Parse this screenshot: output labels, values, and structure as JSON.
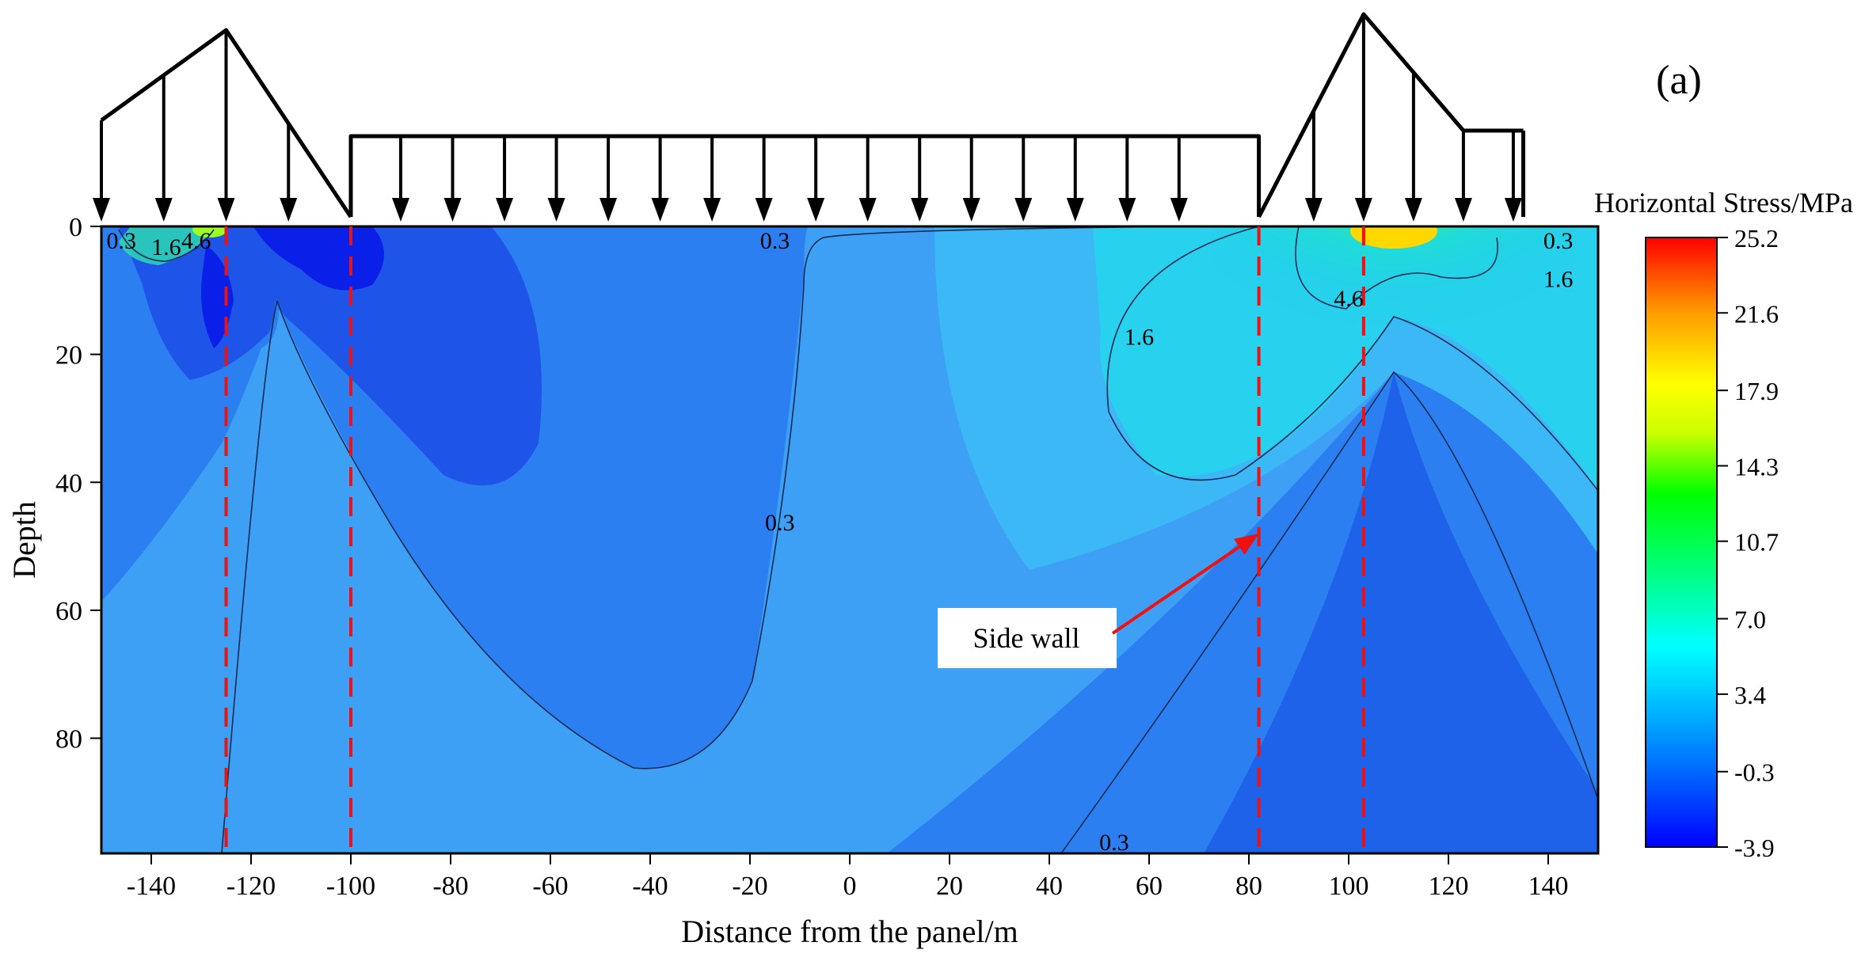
{
  "panel_label": "(a)",
  "chart_data": {
    "type": "heatmap",
    "title": "",
    "xlabel": "Distance from the panel/m",
    "ylabel": "Depth",
    "xlim": [
      -150,
      150
    ],
    "ylim": [
      0,
      98
    ],
    "y_inverted": true,
    "x_ticks": [
      -140,
      -120,
      -100,
      -80,
      -60,
      -40,
      -20,
      0,
      20,
      40,
      60,
      80,
      100,
      120,
      140
    ],
    "y_ticks": [
      0,
      20,
      40,
      60,
      80
    ],
    "colorbar": {
      "title": "Horizontal Stress/MPa",
      "min": -3.9,
      "max": 25.2,
      "ticks": [
        25.2,
        21.6,
        17.9,
        14.3,
        10.7,
        7.0,
        3.4,
        -0.3,
        -3.9
      ],
      "tick_labels": [
        "25.2",
        "21.6",
        "17.9",
        "14.3",
        "10.7",
        "7.0",
        "3.4",
        "-0.3",
        "-3.9"
      ],
      "colors": [
        "#0000ff",
        "#0066ff",
        "#00c8ff",
        "#00ffff",
        "#00ff80",
        "#00ff00",
        "#ccff00",
        "#ffff00",
        "#ff9900",
        "#ff0000"
      ]
    },
    "contour_labels": [
      {
        "text": "0.3",
        "x": -146,
        "y": 2
      },
      {
        "text": "1.6",
        "x": -137,
        "y": 3
      },
      {
        "text": "4.6",
        "x": -131,
        "y": 2
      },
      {
        "text": "0.3",
        "x": -15,
        "y": 2
      },
      {
        "text": "0.3",
        "x": -14,
        "y": 46
      },
      {
        "text": "1.6",
        "x": 58,
        "y": 17
      },
      {
        "text": "4.6",
        "x": 100,
        "y": 11
      },
      {
        "text": "0.3",
        "x": 142,
        "y": 2
      },
      {
        "text": "1.6",
        "x": 142,
        "y": 8
      },
      {
        "text": "0.3",
        "x": 53,
        "y": 96
      }
    ],
    "reference_lines_x": [
      -125,
      -100,
      82,
      103
    ],
    "annotation": {
      "text": "Side wall",
      "arrow_to": {
        "x": 82,
        "y": 48
      }
    },
    "load_diagram": {
      "left_peak_x": -125,
      "left_end_x": -100,
      "uniform_from_x": -100,
      "uniform_to_x": 82,
      "right_peak_x": 103,
      "right_end_x": 135
    }
  }
}
